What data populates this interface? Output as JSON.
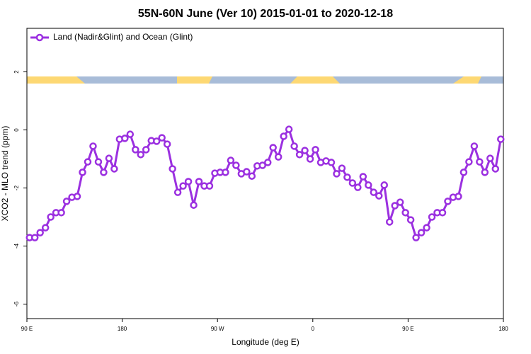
{
  "chart_data": {
    "type": "line",
    "title": "55N-60N June (Ver 10)   2015-01-01 to 2020-12-18",
    "xlabel": "Longitude (deg E)",
    "ylabel": "XCO2 - MLO trend (ppm)",
    "x": [
      92.5,
      97.5,
      102.5,
      107.5,
      112.5,
      117.5,
      122.5,
      127.5,
      132.5,
      137.5,
      142.5,
      147.5,
      152.5,
      157.5,
      162.5,
      167.5,
      172.5,
      177.5,
      182.5,
      187.5,
      192.5,
      197.5,
      202.5,
      207.5,
      212.5,
      217.5,
      222.5,
      227.5,
      232.5,
      237.5,
      242.5,
      247.5,
      252.5,
      257.5,
      262.5,
      267.5,
      272.5,
      277.5,
      282.5,
      287.5,
      292.5,
      297.5,
      302.5,
      307.5,
      312.5,
      317.5,
      322.5,
      327.5,
      332.5,
      337.5,
      342.5,
      347.5,
      352.5,
      357.5,
      362.5,
      367.5,
      372.5,
      377.5,
      382.5,
      387.5,
      392.5,
      397.5,
      402.5,
      407.5,
      412.5,
      417.5,
      422.5,
      427.5,
      432.5,
      437.5,
      442.5,
      447.5,
      452.5,
      457.5,
      462.5,
      467.5,
      472.5,
      477.5,
      482.5,
      487.5,
      492.5,
      497.5,
      502.5,
      507.5,
      512.5,
      517.5,
      522.5,
      527.5,
      532.5,
      537.5
    ],
    "series": [
      {
        "name": "Land (Nadir&Glint) and Ocean (Glint)",
        "color": "#9b30e0",
        "values": [
          -3.71,
          -3.71,
          -3.54,
          -3.37,
          -3.0,
          -2.85,
          -2.85,
          -2.46,
          -2.32,
          -2.29,
          -1.46,
          -1.1,
          -0.56,
          -1.1,
          -1.46,
          -0.98,
          -1.34,
          -0.32,
          -0.29,
          -0.15,
          -0.68,
          -0.85,
          -0.68,
          -0.37,
          -0.39,
          -0.27,
          -0.49,
          -1.34,
          -2.15,
          -1.93,
          -1.78,
          -2.59,
          -1.78,
          -1.93,
          -1.93,
          -1.49,
          -1.46,
          -1.46,
          -1.05,
          -1.22,
          -1.51,
          -1.44,
          -1.59,
          -1.24,
          -1.22,
          -1.12,
          -0.61,
          -0.93,
          -0.22,
          0.02,
          -0.56,
          -0.85,
          -0.71,
          -1.0,
          -0.68,
          -1.12,
          -1.07,
          -1.12,
          -1.51,
          -1.32,
          -1.63,
          -1.83,
          -1.98,
          -1.61,
          -1.9,
          -2.15,
          -2.27,
          -1.9,
          -3.17,
          -2.61,
          -2.49,
          -2.85,
          -3.1,
          -3.71,
          -3.54,
          -3.37,
          -3.0,
          -2.85,
          -2.85,
          -2.46,
          -2.32,
          -2.29,
          -1.46,
          -1.1,
          -0.56,
          -1.1,
          -1.46,
          -0.98,
          -1.34,
          -0.32
        ]
      }
    ],
    "xlim": [
      90,
      540
    ],
    "xticks": [
      {
        "value": 90,
        "label": "90 E"
      },
      {
        "value": 180,
        "label": "180"
      },
      {
        "value": 270,
        "label": "90 W"
      },
      {
        "value": 360,
        "label": "0"
      },
      {
        "value": 450,
        "label": "90 E"
      },
      {
        "value": 540,
        "label": "180"
      }
    ],
    "ylim": [
      -6.5,
      3.5
    ],
    "yticks": [
      -6,
      -4,
      -2,
      0,
      2
    ],
    "legend": "top-left"
  }
}
